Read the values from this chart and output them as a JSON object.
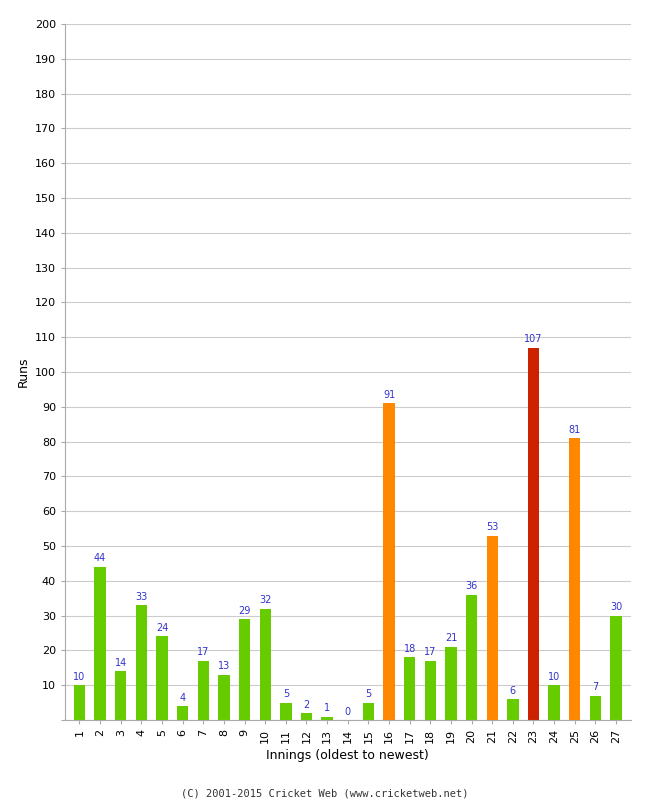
{
  "xlabel": "Innings (oldest to newest)",
  "ylabel": "Runs",
  "categories": [
    1,
    2,
    3,
    4,
    5,
    6,
    7,
    8,
    9,
    10,
    11,
    12,
    13,
    14,
    15,
    16,
    17,
    18,
    19,
    20,
    21,
    22,
    23,
    24,
    25,
    26,
    27
  ],
  "values": [
    10,
    44,
    14,
    33,
    24,
    4,
    17,
    13,
    29,
    32,
    5,
    2,
    1,
    0,
    5,
    91,
    18,
    17,
    21,
    36,
    53,
    6,
    107,
    10,
    81,
    7,
    30
  ],
  "colors": [
    "#66cc00",
    "#66cc00",
    "#66cc00",
    "#66cc00",
    "#66cc00",
    "#66cc00",
    "#66cc00",
    "#66cc00",
    "#66cc00",
    "#66cc00",
    "#66cc00",
    "#66cc00",
    "#66cc00",
    "#66cc00",
    "#66cc00",
    "#ff8800",
    "#66cc00",
    "#66cc00",
    "#66cc00",
    "#66cc00",
    "#ff8800",
    "#66cc00",
    "#cc2200",
    "#66cc00",
    "#ff8800",
    "#66cc00",
    "#66cc00"
  ],
  "ylim": [
    0,
    200
  ],
  "yticks": [
    0,
    10,
    20,
    30,
    40,
    50,
    60,
    70,
    80,
    90,
    100,
    110,
    120,
    130,
    140,
    150,
    160,
    170,
    180,
    190,
    200
  ],
  "label_color": "#3333cc",
  "background_color": "#ffffff",
  "grid_color": "#cccccc",
  "footer": "(C) 2001-2015 Cricket Web (www.cricketweb.net)"
}
